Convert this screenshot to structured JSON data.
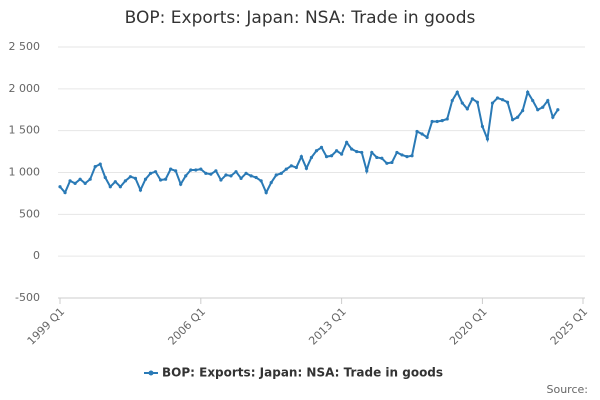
{
  "chart_data": {
    "type": "line",
    "title": "BOP: Exports: Japan: NSA: Trade in goods",
    "source": "Source:",
    "x": [
      1999,
      1999.25,
      1999.5,
      1999.75,
      2000,
      2000.25,
      2000.5,
      2000.75,
      2001,
      2001.25,
      2001.5,
      2001.75,
      2002,
      2002.25,
      2002.5,
      2002.75,
      2003,
      2003.25,
      2003.5,
      2003.75,
      2004,
      2004.25,
      2004.5,
      2004.75,
      2005,
      2005.25,
      2005.5,
      2005.75,
      2006,
      2006.25,
      2006.5,
      2006.75,
      2007,
      2007.25,
      2007.5,
      2007.75,
      2008,
      2008.25,
      2008.5,
      2008.75,
      2009,
      2009.25,
      2009.5,
      2009.75,
      2010,
      2010.25,
      2010.5,
      2010.75,
      2011,
      2011.25,
      2011.5,
      2011.75,
      2012,
      2012.25,
      2012.5,
      2012.75,
      2013,
      2013.25,
      2013.5,
      2013.75,
      2014,
      2014.25,
      2014.5,
      2014.75,
      2015,
      2015.25,
      2015.5,
      2015.75,
      2016,
      2016.25,
      2016.5,
      2016.75,
      2017,
      2017.25,
      2017.5,
      2017.75,
      2018,
      2018.25,
      2018.5,
      2018.75,
      2019,
      2019.25,
      2019.5,
      2019.75,
      2020,
      2020.25,
      2020.5,
      2020.75,
      2021,
      2021.25,
      2021.5,
      2021.75,
      2022,
      2022.25,
      2022.5,
      2022.75,
      2023,
      2023.25,
      2023.5,
      2023.75
    ],
    "series": [
      {
        "name": "BOP: Exports: Japan: NSA: Trade in goods",
        "color": "#2a7ab6",
        "values": [
          830,
          760,
          900,
          870,
          920,
          870,
          920,
          1070,
          1100,
          940,
          830,
          890,
          830,
          900,
          950,
          930,
          790,
          920,
          990,
          1010,
          910,
          920,
          1040,
          1020,
          860,
          960,
          1030,
          1030,
          1040,
          990,
          980,
          1020,
          910,
          970,
          960,
          1010,
          930,
          990,
          960,
          940,
          900,
          760,
          880,
          970,
          990,
          1040,
          1080,
          1060,
          1190,
          1050,
          1180,
          1260,
          1300,
          1190,
          1200,
          1260,
          1220,
          1360,
          1280,
          1250,
          1240,
          1020,
          1240,
          1180,
          1170,
          1110,
          1120,
          1240,
          1210,
          1190,
          1200,
          1490,
          1460,
          1420,
          1610,
          1610,
          1620,
          1640,
          1860,
          1960,
          1830,
          1760,
          1880,
          1840,
          1550,
          1400,
          1830,
          1890,
          1870,
          1840,
          1630,
          1660,
          1740,
          1960,
          1860,
          1750,
          1780,
          1860,
          1660,
          1750
        ]
      }
    ],
    "xlim": [
      1998.9,
      2025.1
    ],
    "xticks": [
      {
        "value": 1999,
        "label": "1999 Q1"
      },
      {
        "value": 2006,
        "label": "2006 Q1"
      },
      {
        "value": 2013,
        "label": "2013 Q1"
      },
      {
        "value": 2020,
        "label": "2020 Q1"
      },
      {
        "value": 2025,
        "label": "2025 Q1"
      }
    ],
    "ylim": [
      -500,
      2500
    ],
    "yticks": [
      -500,
      0,
      {
        "value": 500,
        "label": "500"
      },
      {
        "value": 1000,
        "label": "1 000"
      },
      {
        "value": 1500,
        "label": "1 500"
      },
      {
        "value": 2000,
        "label": "2 000"
      },
      {
        "value": 2500,
        "label": "2 500"
      }
    ],
    "grid": true
  }
}
